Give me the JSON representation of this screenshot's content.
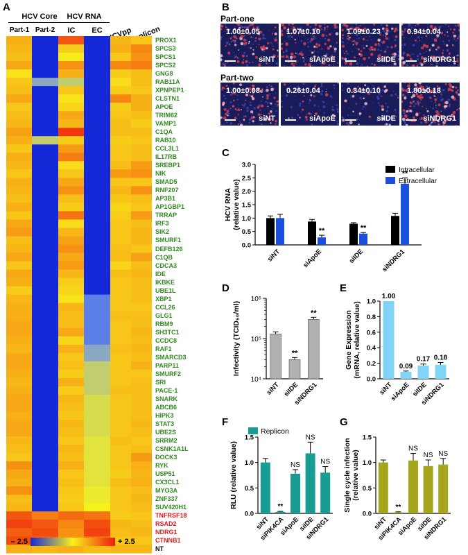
{
  "panel_labels": {
    "A": "A",
    "B": "B",
    "C": "C",
    "D": "D",
    "E": "E",
    "F": "F",
    "G": "G"
  },
  "heatmap": {
    "group_headers": [
      "HCV Core",
      "HCV RNA"
    ],
    "columns": [
      "Part-1",
      "Part-2",
      "IC",
      "EC",
      "HCVpp",
      "Replicon"
    ],
    "genes": [
      "PROX1",
      "SPCS3",
      "SPCS1",
      "SPCS2",
      "GNG8",
      "RAB11A",
      "XPNPEP1",
      "CLSTN1",
      "APOE",
      "TRIM62",
      "VAMP1",
      "C1QA",
      "RAB10",
      "CCL3L1",
      "IL17RB",
      "SREBP1",
      "NIK",
      "SMAD5",
      "RNF207",
      "AP3B1",
      "AP1GBP1",
      "TRRAP",
      "IRF3",
      "SIK2",
      "SMURF1",
      "DEFB126",
      "C1QB",
      "CDCA3",
      "IDE",
      "IKBKE",
      "UBE1L",
      "XBP1",
      "CCL26",
      "GLG1",
      "RBM9",
      "SH3TC1",
      "CCDC8",
      "RAF1",
      "SMARCD3",
      "PARP11",
      "SMURF2",
      "SRI",
      "PACE-1",
      "SNARK",
      "ABCB6",
      "HIPK3",
      "STAT3",
      "UBE2S",
      "SRRM2",
      "CSNK1A1L",
      "DOCK3",
      "RYK",
      "USP51",
      "CX3CL1",
      "MYO3A",
      "ZNF337",
      "SUV420H1",
      "TNFRSF18",
      "RSAD2",
      "NDRG1",
      "CTNNB1",
      "NT"
    ],
    "gene_colors": {
      "default": "#2e8b1e",
      "highlight": "#e01b1b",
      "neutral": "#000000"
    },
    "highlight_genes": [
      "TNFRSF18",
      "RSAD2",
      "NDRG1",
      "CTNNB1"
    ],
    "neutral_genes": [
      "NT"
    ],
    "scale_min": "– 2.5",
    "scale_max": "+ 2.5",
    "scale_range": [
      -2.5,
      2.5
    ],
    "values": [
      [
        0.9,
        -2.5,
        1.9,
        -2.5,
        0.8,
        0.6
      ],
      [
        0.8,
        -2.5,
        0.5,
        -2.5,
        0.9,
        1.4
      ],
      [
        0.7,
        -2.5,
        0.1,
        -2.5,
        0.6,
        1.3
      ],
      [
        1.0,
        -2.5,
        1.3,
        -2.5,
        1.4,
        1.5
      ],
      [
        0.2,
        -2.5,
        0.9,
        -2.5,
        0.5,
        0.7
      ],
      [
        0.6,
        -1.0,
        -0.5,
        -2.5,
        0.3,
        0.7
      ],
      [
        0.7,
        -2.5,
        0.6,
        -2.5,
        0.5,
        0.6
      ],
      [
        1.0,
        -2.5,
        0.2,
        -2.5,
        1.4,
        0.9
      ],
      [
        0.6,
        -2.5,
        0.4,
        -2.5,
        0.5,
        0.9
      ],
      [
        0.7,
        -2.5,
        1.0,
        -2.5,
        0.6,
        0.7
      ],
      [
        0.8,
        -2.5,
        0.8,
        -2.5,
        0.7,
        0.5
      ],
      [
        1.1,
        -2.5,
        2.2,
        -2.5,
        0.7,
        0.7
      ],
      [
        0.9,
        -0.5,
        0.5,
        -2.5,
        0.5,
        0.6
      ],
      [
        0.6,
        -2.5,
        1.2,
        -2.5,
        0.6,
        0.7
      ],
      [
        0.9,
        -2.5,
        1.5,
        -2.5,
        0.6,
        0.7
      ],
      [
        0.8,
        -2.5,
        0.3,
        -2.5,
        0.7,
        1.2
      ],
      [
        0.6,
        -2.5,
        0.6,
        -2.5,
        1.2,
        1.3
      ],
      [
        0.9,
        -2.5,
        1.0,
        -2.5,
        0.6,
        0.6
      ],
      [
        0.8,
        -2.5,
        1.3,
        -2.5,
        0.8,
        1.3
      ],
      [
        0.7,
        -2.5,
        0.7,
        -2.5,
        0.6,
        0.7
      ],
      [
        0.9,
        -2.5,
        0.5,
        -2.5,
        0.4,
        0.6
      ],
      [
        0.6,
        -2.5,
        1.6,
        -2.5,
        0.5,
        1.2
      ],
      [
        1.0,
        -2.5,
        0.3,
        -2.5,
        0.6,
        0.7
      ],
      [
        1.2,
        -2.5,
        0.8,
        -2.5,
        0.6,
        0.8
      ],
      [
        0.7,
        -2.5,
        1.1,
        -2.5,
        0.6,
        0.8
      ],
      [
        0.8,
        -2.5,
        1.3,
        -2.5,
        0.7,
        0.6
      ],
      [
        1.0,
        -2.5,
        1.0,
        -2.5,
        0.7,
        1.1
      ],
      [
        0.6,
        -2.5,
        1.2,
        -2.5,
        0.4,
        0.7
      ],
      [
        1.0,
        -2.5,
        0.8,
        -2.5,
        0.7,
        0.8
      ],
      [
        0.9,
        -2.5,
        0.5,
        -2.5,
        0.6,
        0.7
      ],
      [
        0.5,
        -2.5,
        0.4,
        -2.5,
        0.6,
        0.7
      ],
      [
        0.8,
        -2.5,
        0.2,
        -1.5,
        0.6,
        0.7
      ],
      [
        0.9,
        -2.5,
        0.8,
        -1.5,
        0.6,
        0.6
      ],
      [
        0.9,
        -2.5,
        0.7,
        -1.5,
        0.7,
        0.7
      ],
      [
        1.0,
        -2.5,
        0.7,
        -1.5,
        0.6,
        0.7
      ],
      [
        1.0,
        -2.5,
        1.0,
        -1.5,
        0.6,
        0.8
      ],
      [
        0.9,
        -2.5,
        0.4,
        -1.5,
        0.6,
        0.7
      ],
      [
        0.8,
        -2.5,
        0.9,
        -1.0,
        0.7,
        0.8
      ],
      [
        1.0,
        -2.5,
        0.6,
        -1.0,
        0.6,
        0.7
      ],
      [
        1.0,
        -2.5,
        0.7,
        -0.5,
        0.6,
        0.9
      ],
      [
        0.9,
        -2.5,
        0.5,
        -0.5,
        0.6,
        0.6
      ],
      [
        0.8,
        -2.5,
        0.9,
        -0.5,
        0.6,
        0.7
      ],
      [
        0.9,
        -2.5,
        0.5,
        -0.5,
        0.7,
        0.7
      ],
      [
        1.0,
        -2.5,
        0.8,
        -0.3,
        0.6,
        0.7
      ],
      [
        1.0,
        -2.5,
        0.7,
        -0.3,
        0.6,
        0.7
      ],
      [
        0.9,
        -2.5,
        0.6,
        -0.3,
        0.6,
        0.7
      ],
      [
        1.0,
        -2.5,
        0.8,
        -0.3,
        0.6,
        0.8
      ],
      [
        1.0,
        -2.5,
        0.7,
        -0.3,
        0.6,
        0.7
      ],
      [
        0.8,
        -2.5,
        0.6,
        -0.2,
        0.7,
        0.6
      ],
      [
        0.7,
        -2.5,
        0.8,
        -0.2,
        0.6,
        0.7
      ],
      [
        0.6,
        -2.5,
        0.7,
        -0.2,
        0.6,
        1.2
      ],
      [
        1.3,
        -2.5,
        0.9,
        -0.2,
        0.6,
        0.9
      ],
      [
        1.0,
        -2.5,
        0.6,
        -0.2,
        0.5,
        0.8
      ],
      [
        0.9,
        -2.5,
        0.7,
        -0.2,
        0.7,
        0.9
      ],
      [
        1.3,
        -2.5,
        0.6,
        -0.1,
        0.6,
        0.7
      ],
      [
        0.7,
        -2.5,
        0.5,
        -0.1,
        0.6,
        0.8
      ],
      [
        0.8,
        -2.5,
        0.6,
        0.0,
        0.6,
        0.7
      ],
      [
        1.9,
        1.5,
        1.7,
        1.6,
        0.5,
        0.6
      ],
      [
        2.1,
        1.9,
        1.4,
        2.0,
        0.8,
        0.7
      ],
      [
        1.8,
        2.0,
        1.3,
        2.1,
        0.7,
        0.8
      ],
      [
        2.0,
        1.8,
        1.2,
        1.6,
        0.6,
        0.6
      ],
      [
        0.9,
        0.8,
        0.9,
        0.7,
        0.8,
        0.8
      ]
    ]
  },
  "panel_b": {
    "rows": [
      {
        "title": "Part-one",
        "images": [
          {
            "value": "1.00±0.05",
            "label": "siNT",
            "density": 0.6
          },
          {
            "value": "1.07±0.10",
            "label": "siApoE",
            "density": 0.62
          },
          {
            "value": "1.09±0.23",
            "label": "siIDE",
            "density": 0.64
          },
          {
            "value": "0.94±0.04",
            "label": "siNDRG1",
            "density": 0.56
          }
        ]
      },
      {
        "title": "Part-two",
        "images": [
          {
            "value": "1.00±0.08",
            "label": "siNT",
            "density": 0.55
          },
          {
            "value": "0.26±0.04",
            "label": "siApoE",
            "density": 0.14
          },
          {
            "value": "0.34±0.10",
            "label": "siIDE",
            "density": 0.19
          },
          {
            "value": "1.80±0.18",
            "label": "siNDRG1",
            "density": 0.9
          }
        ]
      }
    ],
    "colors": {
      "background": "#1a1c5a",
      "signal": "#d8404a",
      "bright": "#f6bcc6"
    }
  },
  "chart_data": [
    {
      "id": "C",
      "type": "bar",
      "categories": [
        "siNT",
        "siApoE",
        "siIDE",
        "siNDRG1"
      ],
      "series": [
        {
          "name": "Intracellular",
          "values": [
            1.0,
            0.87,
            0.79,
            1.08
          ],
          "errors": [
            0.08,
            0.08,
            0.04,
            0.1
          ],
          "color": "#000000"
        },
        {
          "name": "Extracellular",
          "values": [
            1.0,
            0.28,
            0.42,
            2.28
          ],
          "errors": [
            0.14,
            0.08,
            0.04,
            0.22
          ],
          "color": "#1a4fe0"
        }
      ],
      "annotations": [
        {
          "category": "siApoE",
          "text": "**"
        },
        {
          "category": "siIDE",
          "text": "**"
        },
        {
          "category": "siNDRG1",
          "text": "**"
        }
      ],
      "ylabel": "HCV RNA\n(relative value)",
      "ylim": [
        0,
        3.0
      ],
      "yticks": [
        "0.0",
        "0.5",
        "1.0",
        "1.5",
        "2.0",
        "2.5",
        "3.0"
      ],
      "legend": "top-right"
    },
    {
      "id": "D",
      "type": "bar",
      "categories": [
        "siNT",
        "siIDE",
        "siNDRG1"
      ],
      "values": [
        130000,
        30000,
        300000
      ],
      "ylabel": "Infectivity (TCID₅₀/ml)",
      "yscale": "log",
      "ylim": [
        10000,
        1000000
      ],
      "yticks": [
        "10⁴",
        "10⁵",
        "10⁶"
      ],
      "annotations": [
        "",
        "**",
        "**"
      ],
      "color": "#b0b0b0"
    },
    {
      "id": "E",
      "type": "bar",
      "categories": [
        "siNT",
        "siApoE",
        "siIDE",
        "siNDRG1"
      ],
      "values": [
        1.0,
        0.09,
        0.17,
        0.18
      ],
      "data_labels": [
        "1.00",
        "0.09",
        "0.17",
        "0.18"
      ],
      "errors": [
        0,
        0.01,
        0.02,
        0.03
      ],
      "ylabel": "Gene Expression\n(mRNA, relative value)",
      "ylim": [
        0,
        1.0
      ],
      "yticks": [
        "0.0",
        "0.2",
        "0.4",
        "0.6",
        "0.8",
        "1.0"
      ],
      "color": "#80d4f6"
    },
    {
      "id": "F",
      "type": "bar",
      "categories": [
        "siNT",
        "siPIK4CA",
        "siApoE",
        "siIDE",
        "siNDRG1"
      ],
      "values": [
        1.0,
        0.03,
        0.78,
        1.18,
        0.8
      ],
      "errors": [
        0.08,
        0.01,
        0.08,
        0.22,
        0.12
      ],
      "annotations": [
        "",
        "**",
        "NS",
        "NS",
        "NS"
      ],
      "series_name": "Replicon",
      "ylabel": "RLU (relative value)",
      "ylim": [
        0,
        1.5
      ],
      "yticks": [
        "0.0",
        "0.5",
        "1.0",
        "1.5"
      ],
      "color": "#199c94",
      "legend": "top-left"
    },
    {
      "id": "G",
      "type": "bar",
      "categories": [
        "siNT",
        "siPIK4CA",
        "siApoE",
        "siIDE",
        "siNDRG1"
      ],
      "values": [
        1.0,
        0.02,
        1.04,
        0.93,
        0.96
      ],
      "errors": [
        0.05,
        0.01,
        0.14,
        0.12,
        0.12
      ],
      "annotations": [
        "",
        "**",
        "NS",
        "NS",
        "NS"
      ],
      "ylabel": "Single cycle infection\n(relative value)",
      "ylim": [
        0,
        1.5
      ],
      "yticks": [
        "0.0",
        "0.5",
        "1.0",
        "1.5"
      ],
      "color": "#a6a61e"
    }
  ]
}
